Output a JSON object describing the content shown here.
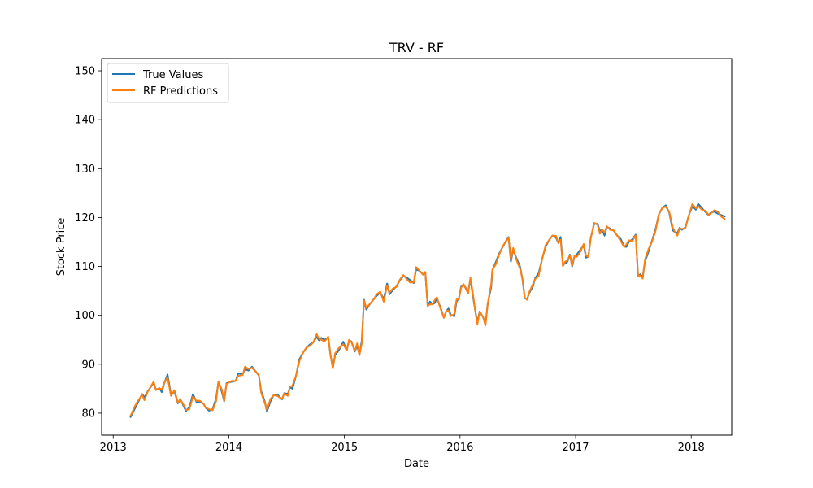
{
  "chart_data": {
    "type": "line",
    "title": "TRV - RF",
    "xlabel": "Date",
    "ylabel": "Stock Price",
    "xlim": [
      2012.9,
      2018.35
    ],
    "ylim": [
      75.5,
      152.5
    ],
    "x_ticks": [
      2013,
      2014,
      2015,
      2016,
      2017,
      2018
    ],
    "x_tick_labels": [
      "2013",
      "2014",
      "2015",
      "2016",
      "2017",
      "2018"
    ],
    "y_ticks": [
      80,
      90,
      100,
      110,
      120,
      130,
      140,
      150
    ],
    "y_tick_labels": [
      "80",
      "90",
      "100",
      "110",
      "120",
      "130",
      "140",
      "150"
    ],
    "legend": {
      "placement": "top-left"
    },
    "grid": false,
    "series": [
      {
        "name": "True Values",
        "color": "#1f77b4",
        "points": [
          [
            2013.15,
            79.2
          ],
          [
            2013.2,
            81.5
          ],
          [
            2013.25,
            83.9
          ],
          [
            2013.27,
            83.2
          ],
          [
            2013.3,
            84.5
          ],
          [
            2013.35,
            86.2
          ],
          [
            2013.37,
            84.8
          ],
          [
            2013.4,
            85.1
          ],
          [
            2013.42,
            84.3
          ],
          [
            2013.44,
            86.0
          ],
          [
            2013.47,
            87.9
          ],
          [
            2013.5,
            83.8
          ],
          [
            2013.53,
            84.4
          ],
          [
            2013.56,
            82.0
          ],
          [
            2013.58,
            82.9
          ],
          [
            2013.61,
            81.4
          ],
          [
            2013.63,
            80.4
          ],
          [
            2013.66,
            81.3
          ],
          [
            2013.69,
            83.9
          ],
          [
            2013.72,
            82.3
          ],
          [
            2013.75,
            82.2
          ],
          [
            2013.78,
            82.0
          ],
          [
            2013.8,
            81.1
          ],
          [
            2013.83,
            80.5
          ],
          [
            2013.86,
            80.8
          ],
          [
            2013.89,
            83.0
          ],
          [
            2013.91,
            86.4
          ],
          [
            2013.94,
            84.3
          ],
          [
            2013.96,
            82.4
          ],
          [
            2013.98,
            86.1
          ],
          [
            2014.02,
            86.4
          ],
          [
            2014.06,
            86.6
          ],
          [
            2014.08,
            88.1
          ],
          [
            2014.12,
            88.0
          ],
          [
            2014.14,
            89.0
          ],
          [
            2014.17,
            88.7
          ],
          [
            2014.2,
            89.5
          ],
          [
            2014.23,
            88.6
          ],
          [
            2014.26,
            87.7
          ],
          [
            2014.28,
            84.5
          ],
          [
            2014.31,
            82.5
          ],
          [
            2014.33,
            80.3
          ],
          [
            2014.36,
            82.4
          ],
          [
            2014.39,
            83.8
          ],
          [
            2014.42,
            83.8
          ],
          [
            2014.46,
            82.8
          ],
          [
            2014.48,
            84.1
          ],
          [
            2014.51,
            83.9
          ],
          [
            2014.53,
            85.3
          ],
          [
            2014.55,
            85.0
          ],
          [
            2014.58,
            87.5
          ],
          [
            2014.61,
            91.0
          ],
          [
            2014.64,
            92.3
          ],
          [
            2014.67,
            93.3
          ],
          [
            2014.7,
            94.0
          ],
          [
            2014.73,
            94.5
          ],
          [
            2014.76,
            95.6
          ],
          [
            2014.78,
            94.9
          ],
          [
            2014.8,
            95.4
          ],
          [
            2014.83,
            95.0
          ],
          [
            2014.86,
            95.5
          ],
          [
            2014.88,
            91.8
          ],
          [
            2014.9,
            89.3
          ],
          [
            2014.92,
            91.9
          ],
          [
            2014.95,
            92.8
          ],
          [
            2014.98,
            94.1
          ],
          [
            2014.99,
            94.6
          ],
          [
            2015.02,
            92.8
          ],
          [
            2015.04,
            94.8
          ],
          [
            2015.06,
            94.7
          ],
          [
            2015.09,
            92.6
          ],
          [
            2015.11,
            93.8
          ],
          [
            2015.13,
            91.9
          ],
          [
            2015.15,
            94.8
          ],
          [
            2015.17,
            103.2
          ],
          [
            2015.19,
            101.2
          ],
          [
            2015.22,
            102.3
          ],
          [
            2015.25,
            103.2
          ],
          [
            2015.28,
            104.0
          ],
          [
            2015.31,
            104.7
          ],
          [
            2015.34,
            103.3
          ],
          [
            2015.37,
            106.5
          ],
          [
            2015.39,
            104.3
          ],
          [
            2015.42,
            105.2
          ],
          [
            2015.45,
            105.9
          ],
          [
            2015.48,
            107.2
          ],
          [
            2015.51,
            108.0
          ],
          [
            2015.54,
            107.7
          ],
          [
            2015.57,
            107.2
          ],
          [
            2015.6,
            106.6
          ],
          [
            2015.62,
            109.4
          ],
          [
            2015.65,
            109.1
          ],
          [
            2015.68,
            108.4
          ],
          [
            2015.7,
            108.7
          ],
          [
            2015.72,
            102.0
          ],
          [
            2015.74,
            102.8
          ],
          [
            2015.76,
            102.3
          ],
          [
            2015.78,
            102.5
          ],
          [
            2015.8,
            103.5
          ],
          [
            2015.83,
            101.7
          ],
          [
            2015.86,
            99.5
          ],
          [
            2015.88,
            100.8
          ],
          [
            2015.9,
            101.4
          ],
          [
            2015.92,
            100.1
          ],
          [
            2015.95,
            99.8
          ],
          [
            2015.97,
            102.8
          ],
          [
            2015.99,
            103.5
          ],
          [
            2016.01,
            105.9
          ],
          [
            2016.03,
            106.3
          ],
          [
            2016.05,
            105.6
          ],
          [
            2016.07,
            104.8
          ],
          [
            2016.09,
            107.4
          ],
          [
            2016.11,
            104.2
          ],
          [
            2016.13,
            101.2
          ],
          [
            2016.15,
            98.6
          ],
          [
            2016.17,
            100.8
          ],
          [
            2016.2,
            99.6
          ],
          [
            2016.22,
            98.2
          ],
          [
            2016.24,
            102.4
          ],
          [
            2016.27,
            105.8
          ],
          [
            2016.28,
            109.2
          ],
          [
            2016.31,
            110.9
          ],
          [
            2016.34,
            112.7
          ],
          [
            2016.37,
            114.0
          ],
          [
            2016.4,
            115.3
          ],
          [
            2016.42,
            116.0
          ],
          [
            2016.44,
            111.0
          ],
          [
            2016.46,
            113.4
          ],
          [
            2016.49,
            111.6
          ],
          [
            2016.52,
            109.9
          ],
          [
            2016.54,
            107.4
          ],
          [
            2016.56,
            103.5
          ],
          [
            2016.58,
            103.3
          ],
          [
            2016.6,
            104.6
          ],
          [
            2016.63,
            105.9
          ],
          [
            2016.65,
            107.6
          ],
          [
            2016.68,
            108.6
          ],
          [
            2016.71,
            111.5
          ],
          [
            2016.74,
            114.0
          ],
          [
            2016.77,
            115.4
          ],
          [
            2016.8,
            116.3
          ],
          [
            2016.83,
            115.9
          ],
          [
            2016.85,
            114.8
          ],
          [
            2016.87,
            116.0
          ],
          [
            2016.89,
            110.3
          ],
          [
            2016.91,
            110.6
          ],
          [
            2016.93,
            111.0
          ],
          [
            2016.95,
            112.4
          ],
          [
            2016.97,
            110.0
          ],
          [
            2016.99,
            112.0
          ],
          [
            2017.01,
            112.4
          ],
          [
            2017.04,
            113.4
          ],
          [
            2017.07,
            114.3
          ],
          [
            2017.09,
            111.8
          ],
          [
            2017.11,
            112.0
          ],
          [
            2017.13,
            115.7
          ],
          [
            2017.16,
            118.7
          ],
          [
            2017.19,
            118.7
          ],
          [
            2017.21,
            117.2
          ],
          [
            2017.23,
            117.5
          ],
          [
            2017.25,
            116.3
          ],
          [
            2017.27,
            118.1
          ],
          [
            2017.3,
            117.7
          ],
          [
            2017.33,
            117.3
          ],
          [
            2017.36,
            116.3
          ],
          [
            2017.39,
            115.6
          ],
          [
            2017.42,
            114.1
          ],
          [
            2017.44,
            114.0
          ],
          [
            2017.46,
            115.0
          ],
          [
            2017.49,
            115.5
          ],
          [
            2017.52,
            116.5
          ],
          [
            2017.54,
            108.0
          ],
          [
            2017.56,
            108.4
          ],
          [
            2017.58,
            107.8
          ],
          [
            2017.6,
            111.0
          ],
          [
            2017.63,
            113.0
          ],
          [
            2017.66,
            115.2
          ],
          [
            2017.69,
            117.5
          ],
          [
            2017.72,
            120.6
          ],
          [
            2017.75,
            122.0
          ],
          [
            2017.78,
            122.5
          ],
          [
            2017.81,
            121.0
          ],
          [
            2017.84,
            117.4
          ],
          [
            2017.86,
            117.0
          ],
          [
            2017.88,
            116.8
          ],
          [
            2017.9,
            117.9
          ],
          [
            2017.92,
            117.5
          ],
          [
            2017.95,
            118.0
          ],
          [
            2017.98,
            120.5
          ],
          [
            2018.01,
            122.3
          ],
          [
            2018.04,
            121.6
          ],
          [
            2018.06,
            122.8
          ],
          [
            2018.09,
            122.0
          ],
          [
            2018.12,
            121.2
          ],
          [
            2018.15,
            120.5
          ],
          [
            2018.17,
            121.0
          ],
          [
            2018.2,
            121.2
          ],
          [
            2018.23,
            120.8
          ],
          [
            2018.26,
            120.5
          ],
          [
            2018.29,
            120.2
          ]
        ]
      },
      {
        "name": "RF Predictions",
        "color": "#ff7f0e",
        "points": []
      }
    ]
  }
}
